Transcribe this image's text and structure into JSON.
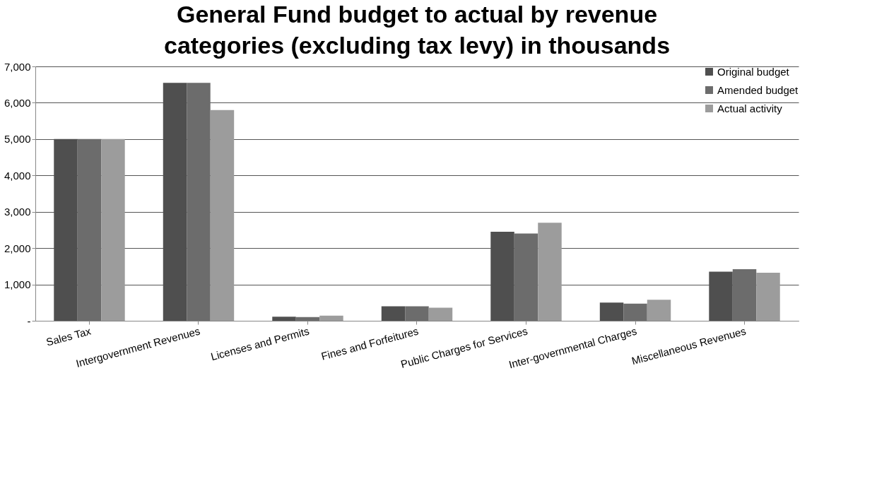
{
  "chart_data": {
    "type": "bar",
    "title": "General Fund budget to actual by revenue categories (excluding tax levy) in thousands",
    "categories": [
      "Sales Tax",
      "Intergovernment Revenues",
      "Licenses and Permits",
      "Fines and Forfeitures",
      "Public Charges for Services",
      "Inter-governmental Charges",
      "Miscellaneous Revenues"
    ],
    "series": [
      {
        "name": "Original budget",
        "color": "#4f4f4f",
        "values": [
          5000,
          6550,
          110,
          400,
          2450,
          500,
          1350
        ]
      },
      {
        "name": "Amended budget",
        "color": "#6c6c6c",
        "values": [
          5000,
          6550,
          100,
          400,
          2400,
          470,
          1420
        ]
      },
      {
        "name": "Actual activity",
        "color": "#9c9c9c",
        "values": [
          5000,
          5800,
          140,
          360,
          2700,
          580,
          1320
        ]
      }
    ],
    "ylim": [
      0,
      7000
    ],
    "yticks": [
      {
        "value": 0,
        "label": "-"
      },
      {
        "value": 1000,
        "label": "1,000"
      },
      {
        "value": 2000,
        "label": "2,000"
      },
      {
        "value": 3000,
        "label": "3,000"
      },
      {
        "value": 4000,
        "label": "4,000"
      },
      {
        "value": 5000,
        "label": "5,000"
      },
      {
        "value": 6000,
        "label": "6,000"
      },
      {
        "value": 7000,
        "label": "7,000"
      }
    ],
    "grid": "y",
    "legend": "top right"
  }
}
